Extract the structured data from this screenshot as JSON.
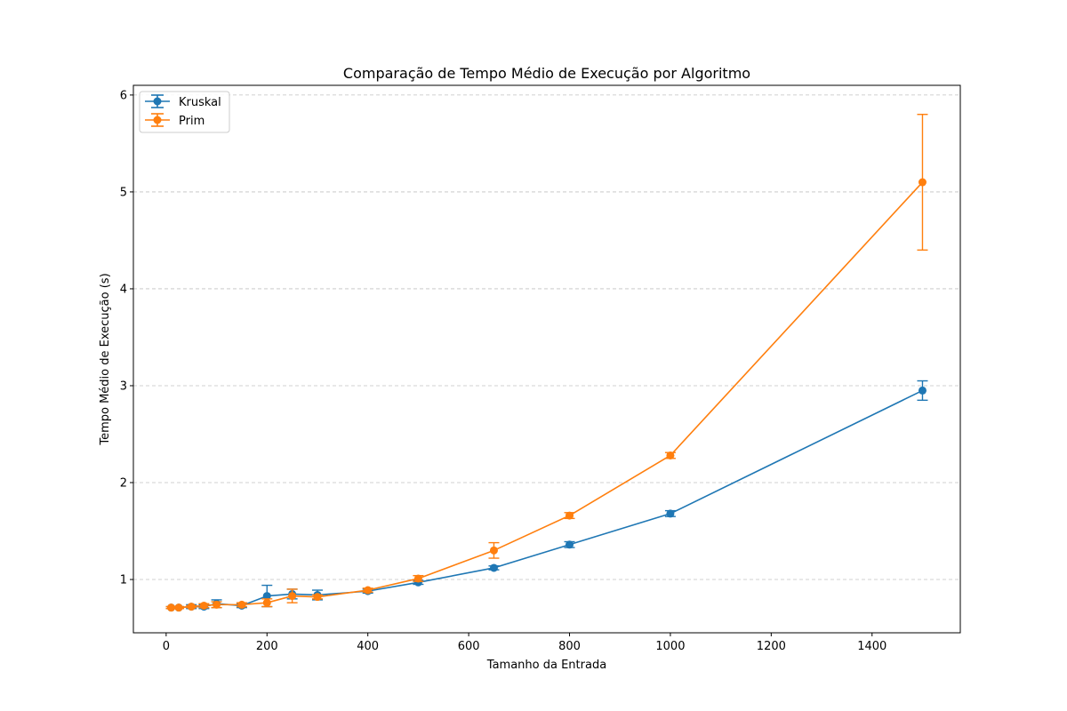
{
  "chart_data": {
    "type": "line",
    "title": "Comparação de Tempo Médio de Execução por Algoritmo",
    "xlabel": "Tamanho da Entrada",
    "ylabel": "Tempo Médio de Execução (s)",
    "xlim": [
      -65,
      1575
    ],
    "ylim": [
      0.45,
      6.1
    ],
    "xticks": [
      0,
      200,
      400,
      600,
      800,
      1000,
      1200,
      1400
    ],
    "yticks": [
      1,
      2,
      3,
      4,
      5,
      6
    ],
    "grid": "y-dashed",
    "legend_position": "upper-left",
    "series": [
      {
        "name": "Kruskal",
        "color": "#1f77b4",
        "x": [
          10,
          25,
          50,
          75,
          100,
          150,
          200,
          250,
          300,
          400,
          500,
          650,
          800,
          1000,
          1500
        ],
        "y": [
          0.71,
          0.71,
          0.72,
          0.72,
          0.75,
          0.73,
          0.83,
          0.85,
          0.84,
          0.88,
          0.97,
          1.12,
          1.36,
          1.68,
          2.95
        ],
        "err": [
          0.01,
          0.01,
          0.02,
          0.02,
          0.04,
          0.02,
          0.11,
          0.05,
          0.05,
          0.02,
          0.02,
          0.02,
          0.03,
          0.03,
          0.1
        ]
      },
      {
        "name": "Prim",
        "color": "#ff7f0e",
        "x": [
          10,
          25,
          50,
          75,
          100,
          150,
          200,
          250,
          300,
          400,
          500,
          650,
          800,
          1000,
          1500
        ],
        "y": [
          0.71,
          0.71,
          0.72,
          0.73,
          0.74,
          0.74,
          0.76,
          0.83,
          0.82,
          0.89,
          1.01,
          1.3,
          1.66,
          2.28,
          5.1
        ],
        "err": [
          0.01,
          0.01,
          0.01,
          0.02,
          0.03,
          0.02,
          0.04,
          0.07,
          0.02,
          0.02,
          0.03,
          0.08,
          0.03,
          0.03,
          0.7
        ]
      }
    ]
  }
}
